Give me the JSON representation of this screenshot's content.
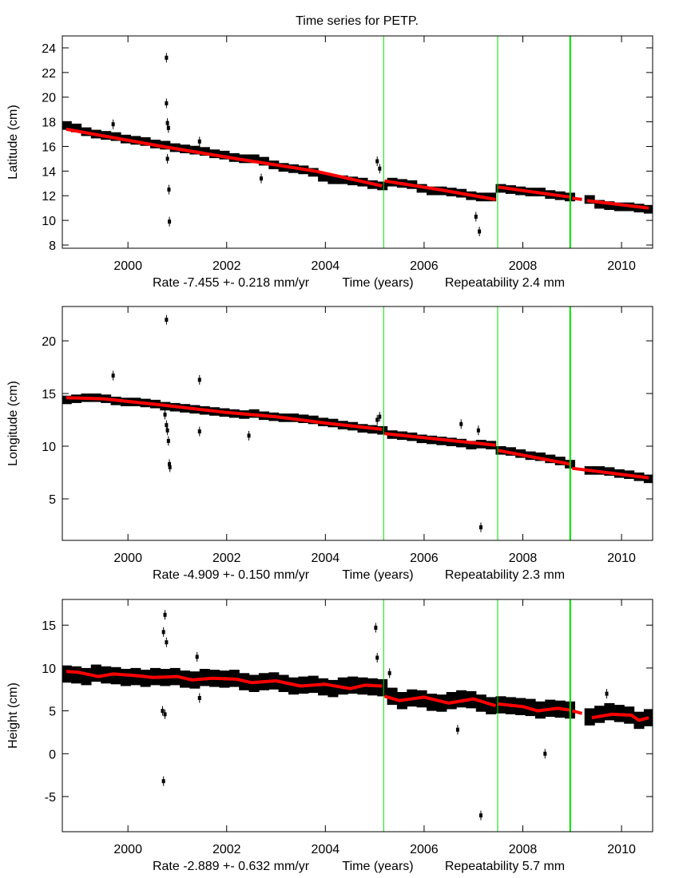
{
  "chart_data": {
    "type": "scatter",
    "title": "Time series for PETP.",
    "xlim": [
      1998.67,
      2010.63
    ],
    "xticks": [
      2000,
      2002,
      2004,
      2006,
      2008,
      2010
    ],
    "xlabel": "Time (years)",
    "obs_x_start": 1998.75,
    "obs_x_step": 0.2,
    "obs_color": "#000000",
    "model_color": "#ff0000",
    "event_color": "#00dd00",
    "events": [
      2005.18,
      2007.49,
      2008.96
    ],
    "panels": [
      {
        "ylabel": "Latitude (cm)",
        "ylim": [
          7.74,
          24.97
        ],
        "yticks": [
          8,
          10,
          12,
          14,
          16,
          18,
          20,
          22,
          24
        ],
        "rate": "Rate -7.455 +- 0.218 mm/yr",
        "repeatability": "Repeatability 2.4 mm",
        "obs_halfwidth": 0.35,
        "obs": [
          17.7,
          17.5,
          17.2,
          17.0,
          16.9,
          16.8,
          16.6,
          16.5,
          16.4,
          16.2,
          16.1,
          15.9,
          15.8,
          15.7,
          15.6,
          15.4,
          15.3,
          15.1,
          15.0,
          15.0,
          14.8,
          14.5,
          14.3,
          14.2,
          14.1,
          13.9,
          13.5,
          13.3,
          13.3,
          13.2,
          13.1,
          12.9,
          12.8,
          13.1,
          13.0,
          12.9,
          12.6,
          12.4,
          12.4,
          12.3,
          12.2,
          12.0,
          11.9,
          11.9,
          12.6,
          12.5,
          12.4,
          12.3,
          12.3,
          12.1,
          12.0,
          11.9,
          null,
          11.7,
          11.3,
          11.2,
          11.1,
          11.1,
          11.0,
          10.9
        ],
        "outliers": [
          [
            2000.78,
            23.2
          ],
          [
            2000.78,
            19.5
          ],
          [
            2000.8,
            17.9
          ],
          [
            2000.82,
            17.5
          ],
          [
            2000.8,
            15.0
          ],
          [
            2000.83,
            12.5
          ],
          [
            2000.84,
            9.9
          ],
          [
            1999.7,
            17.8
          ],
          [
            2001.45,
            16.4
          ],
          [
            2002.7,
            13.4
          ],
          [
            2005.05,
            14.8
          ],
          [
            2005.1,
            14.2
          ],
          [
            2007.05,
            10.3
          ],
          [
            2007.12,
            9.1
          ]
        ],
        "model": [
          [
            [
              1998.75,
              17.4
            ],
            [
              2000.7,
              16.0
            ],
            [
              2002.2,
              15.0
            ],
            [
              2003.8,
              14.0
            ],
            [
              2005.15,
              12.8
            ]
          ],
          [
            [
              2005.2,
              13.2
            ],
            [
              2006.3,
              12.5
            ],
            [
              2007.45,
              11.7
            ]
          ],
          [
            [
              2007.5,
              12.7
            ],
            [
              2008.95,
              11.9
            ]
          ],
          [
            [
              2009.0,
              11.8
            ],
            [
              2009.2,
              11.7
            ]
          ],
          [
            [
              2009.3,
              11.6
            ],
            [
              2010.55,
              11.0
            ]
          ]
        ]
      },
      {
        "ylabel": "Longitude (cm)",
        "ylim": [
          1.06,
          23.26
        ],
        "yticks": [
          5,
          10,
          15,
          20
        ],
        "rate": "Rate -4.909 +- 0.150 mm/yr",
        "repeatability": "Repeatability 2.3 mm",
        "obs_halfwidth": 0.4,
        "obs": [
          14.4,
          14.5,
          14.6,
          14.6,
          14.5,
          14.3,
          14.2,
          14.2,
          14.1,
          14.0,
          13.8,
          13.7,
          13.6,
          13.5,
          13.4,
          13.3,
          13.2,
          13.1,
          13.0,
          13.1,
          12.9,
          12.8,
          12.7,
          12.7,
          12.6,
          12.5,
          12.3,
          12.2,
          12.0,
          11.9,
          11.7,
          11.6,
          11.5,
          11.1,
          11.0,
          10.9,
          10.7,
          10.6,
          10.5,
          10.4,
          10.3,
          10.1,
          10.2,
          10.1,
          9.6,
          9.5,
          9.3,
          9.1,
          9.0,
          8.8,
          8.6,
          8.3,
          null,
          7.7,
          7.7,
          7.6,
          7.4,
          7.3,
          7.1,
          6.9
        ],
        "outliers": [
          [
            1999.7,
            16.7
          ],
          [
            2000.78,
            22.0
          ],
          [
            2000.75,
            13.0
          ],
          [
            2000.78,
            12.0
          ],
          [
            2000.8,
            11.5
          ],
          [
            2000.82,
            10.5
          ],
          [
            2000.84,
            8.3
          ],
          [
            2000.85,
            8.0
          ],
          [
            2001.45,
            16.3
          ],
          [
            2001.45,
            11.4
          ],
          [
            2002.45,
            11.0
          ],
          [
            2005.1,
            12.8
          ],
          [
            2005.05,
            12.5
          ],
          [
            2006.75,
            12.1
          ],
          [
            2007.1,
            11.5
          ],
          [
            2007.15,
            2.3
          ]
        ],
        "model": [
          [
            [
              1998.75,
              14.6
            ],
            [
              1999.5,
              14.5
            ],
            [
              2000.7,
              13.9
            ],
            [
              2002.0,
              13.2
            ],
            [
              2003.0,
              12.8
            ],
            [
              2004.0,
              12.2
            ],
            [
              2005.15,
              11.6
            ]
          ],
          [
            [
              2005.2,
              11.2
            ],
            [
              2007.45,
              10.1
            ]
          ],
          [
            [
              2007.5,
              9.6
            ],
            [
              2008.95,
              8.3
            ]
          ],
          [
            [
              2009.0,
              7.9
            ],
            [
              2010.55,
              7.0
            ]
          ]
        ]
      },
      {
        "ylabel": "Height (cm)",
        "ylim": [
          -9.1,
          18.0
        ],
        "yticks": [
          -5,
          0,
          5,
          10,
          15
        ],
        "rate": "Rate -2.889 +- 0.632 mm/yr",
        "repeatability": "Repeatability 5.7 mm",
        "obs_halfwidth": 1.0,
        "obs": [
          9.3,
          9.2,
          9.0,
          9.4,
          9.2,
          9.1,
          8.9,
          9.0,
          8.8,
          9.0,
          8.9,
          9.0,
          8.7,
          8.6,
          8.9,
          8.8,
          8.7,
          8.8,
          8.4,
          8.2,
          8.4,
          8.5,
          8.2,
          7.9,
          8.0,
          8.1,
          7.8,
          7.6,
          7.9,
          8.0,
          7.9,
          7.8,
          7.7,
          6.7,
          6.2,
          6.5,
          6.4,
          6.0,
          5.9,
          6.2,
          6.4,
          6.3,
          5.9,
          5.6,
          5.7,
          5.6,
          5.5,
          5.4,
          5.1,
          5.3,
          5.2,
          5.1,
          null,
          4.3,
          4.6,
          4.9,
          4.7,
          4.5,
          3.9,
          4.2
        ],
        "outliers": [
          [
            2000.72,
            14.2
          ],
          [
            2000.75,
            16.2
          ],
          [
            2000.78,
            13.0
          ],
          [
            2000.7,
            5.0
          ],
          [
            2000.75,
            4.6
          ],
          [
            2000.72,
            -3.2
          ],
          [
            2001.4,
            11.3
          ],
          [
            2001.45,
            6.5
          ],
          [
            2005.02,
            14.7
          ],
          [
            2005.05,
            11.2
          ],
          [
            2005.3,
            9.4
          ],
          [
            2006.68,
            2.8
          ],
          [
            2007.15,
            -7.2
          ],
          [
            2008.45,
            0.0
          ],
          [
            2009.7,
            7.0
          ]
        ],
        "model": [
          [
            [
              1998.75,
              9.6
            ],
            [
              1999.0,
              9.5
            ],
            [
              1999.4,
              9.0
            ],
            [
              1999.7,
              9.3
            ],
            [
              2000.2,
              9.1
            ],
            [
              2000.5,
              8.9
            ],
            [
              2001.0,
              9.0
            ],
            [
              2001.3,
              8.6
            ],
            [
              2001.7,
              8.8
            ],
            [
              2002.2,
              8.7
            ],
            [
              2002.5,
              8.3
            ],
            [
              2003.0,
              8.5
            ],
            [
              2003.5,
              7.9
            ],
            [
              2004.0,
              8.1
            ],
            [
              2004.5,
              7.6
            ],
            [
              2004.8,
              8.0
            ],
            [
              2005.15,
              7.9
            ]
          ],
          [
            [
              2005.2,
              6.7
            ],
            [
              2005.5,
              6.2
            ],
            [
              2006.0,
              6.6
            ],
            [
              2006.5,
              5.9
            ],
            [
              2007.0,
              6.4
            ],
            [
              2007.45,
              5.6
            ]
          ],
          [
            [
              2007.5,
              5.8
            ],
            [
              2008.0,
              5.5
            ],
            [
              2008.3,
              5.0
            ],
            [
              2008.7,
              5.3
            ],
            [
              2008.95,
              5.1
            ]
          ],
          [
            [
              2009.0,
              5.0
            ],
            [
              2009.2,
              4.7
            ]
          ],
          [
            [
              2009.4,
              4.2
            ],
            [
              2009.8,
              4.6
            ],
            [
              2010.2,
              4.5
            ],
            [
              2010.35,
              3.9
            ],
            [
              2010.55,
              4.2
            ]
          ]
        ]
      }
    ]
  }
}
